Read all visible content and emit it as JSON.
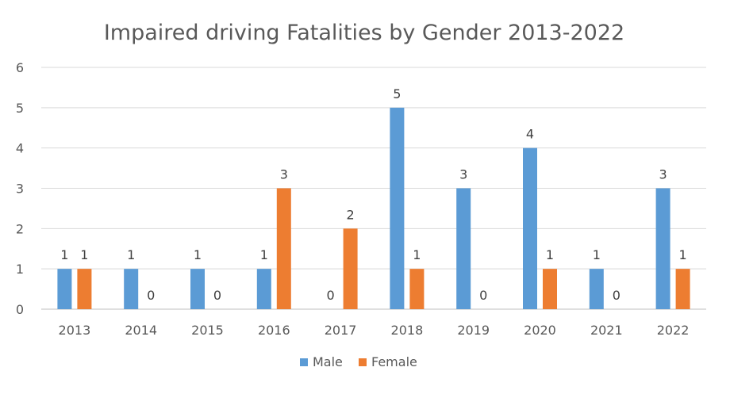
{
  "chart_data": {
    "type": "bar",
    "title": "Impaired driving Fatalities by Gender 2013-2022",
    "xlabel": "",
    "ylabel": "",
    "categories": [
      "2013",
      "2014",
      "2015",
      "2016",
      "2017",
      "2018",
      "2019",
      "2020",
      "2021",
      "2022"
    ],
    "series": [
      {
        "name": "Male",
        "color": "#5b9bd5",
        "values": [
          1,
          1,
          1,
          1,
          0,
          5,
          3,
          4,
          1,
          3
        ]
      },
      {
        "name": "Female",
        "color": "#ed7d31",
        "values": [
          1,
          0,
          0,
          3,
          2,
          1,
          0,
          1,
          0,
          1
        ]
      }
    ],
    "ylim": [
      0,
      6
    ],
    "yticks": [
      0,
      1,
      2,
      3,
      4,
      5,
      6
    ],
    "grid": true,
    "data_labels": true,
    "legend": "bottom"
  }
}
